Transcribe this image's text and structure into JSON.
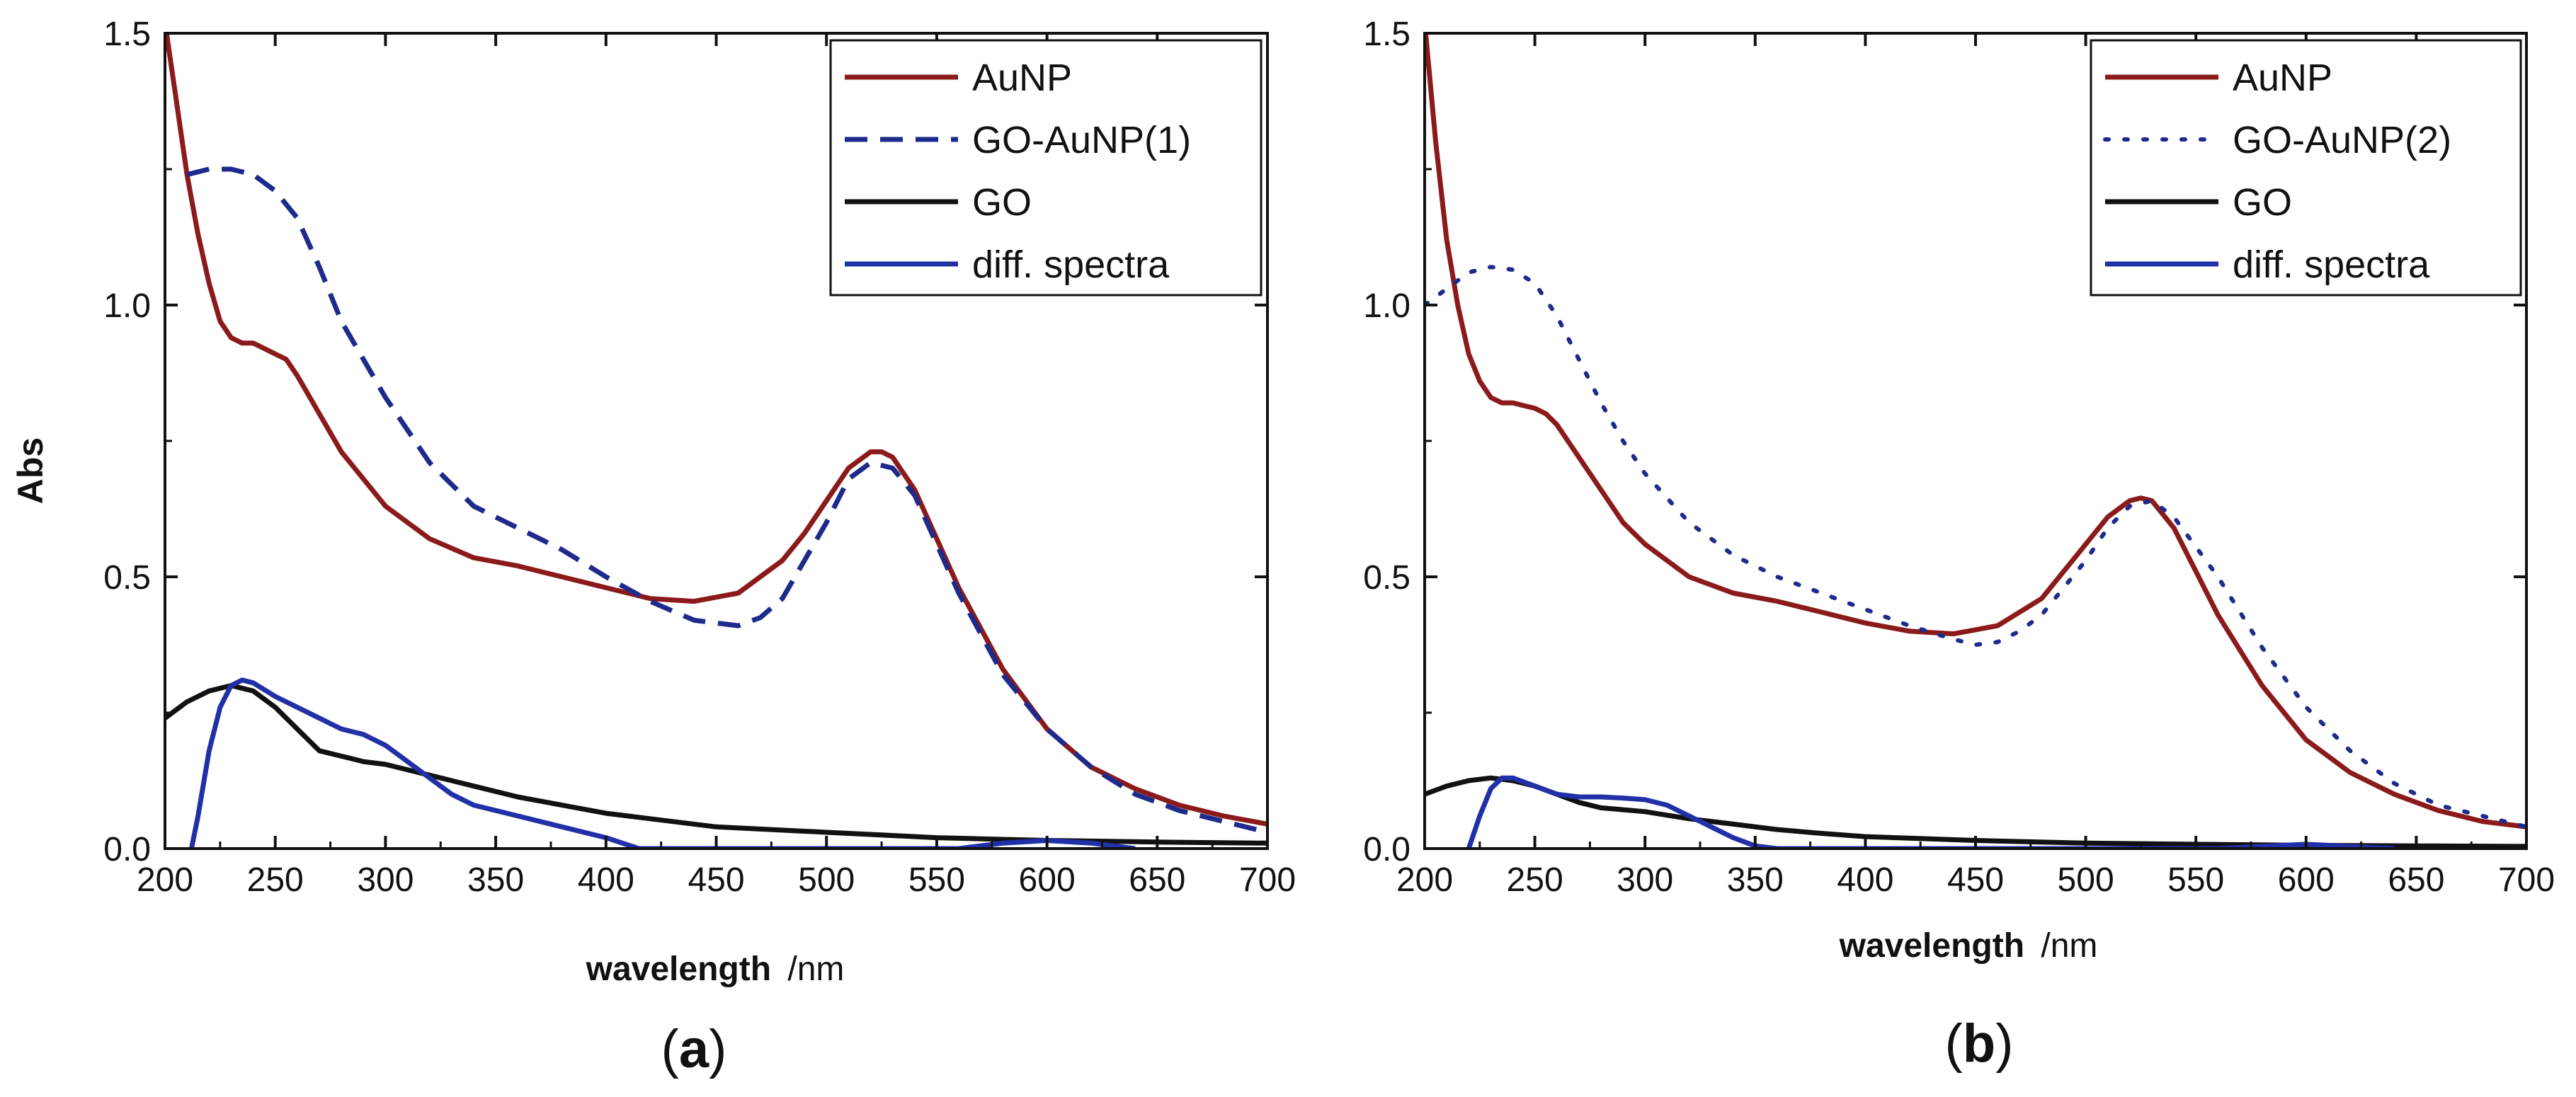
{
  "colors": {
    "AuNP": "#8b1a1a",
    "GO-AuNP": "#1e2a8c",
    "GO": "#111111",
    "diff": "#2230a8"
  },
  "chart_data": [
    {
      "type": "line",
      "panel_label": "a",
      "xlabel": "wavelength",
      "xlabel_unit": "/nm",
      "ylabel": "Abs",
      "xlim": [
        200,
        700
      ],
      "ylim": [
        0,
        1.5
      ],
      "x_ticks": [
        "200",
        "250",
        "300",
        "350",
        "400",
        "450",
        "500",
        "550",
        "600",
        "650",
        "700"
      ],
      "y_ticks": [
        "0.0",
        "0.5",
        "1.0",
        "1.5"
      ],
      "show_ylabel": true,
      "legend_position": "top-right",
      "legend": [
        {
          "name": "AuNP",
          "color": "#8b1a1a",
          "dash": "solid"
        },
        {
          "name": "GO-AuNP(1)",
          "color": "#1e2a8c",
          "dash": "dashed"
        },
        {
          "name": "GO",
          "color": "#111111",
          "dash": "solid"
        },
        {
          "name": "diff. spectra",
          "color": "#2230a8",
          "dash": "solid"
        }
      ],
      "series": [
        {
          "name": "AuNP",
          "color": "#8b1a1a",
          "dash": "solid",
          "x": [
            200,
            205,
            210,
            215,
            220,
            225,
            230,
            235,
            240,
            245,
            250,
            255,
            260,
            270,
            280,
            290,
            300,
            320,
            340,
            360,
            380,
            400,
            420,
            440,
            460,
            480,
            490,
            500,
            510,
            520,
            525,
            530,
            540,
            550,
            560,
            580,
            600,
            620,
            640,
            660,
            680,
            700
          ],
          "y": [
            1.52,
            1.38,
            1.24,
            1.13,
            1.04,
            0.97,
            0.94,
            0.93,
            0.93,
            0.92,
            0.91,
            0.9,
            0.87,
            0.8,
            0.73,
            0.68,
            0.63,
            0.57,
            0.535,
            0.52,
            0.5,
            0.48,
            0.46,
            0.455,
            0.47,
            0.53,
            0.58,
            0.64,
            0.7,
            0.73,
            0.73,
            0.72,
            0.66,
            0.57,
            0.48,
            0.33,
            0.22,
            0.15,
            0.11,
            0.08,
            0.06,
            0.045
          ]
        },
        {
          "name": "GO-AuNP(1)",
          "color": "#1e2a8c",
          "dash": "dashed",
          "x": [
            210,
            220,
            230,
            240,
            250,
            260,
            270,
            280,
            300,
            320,
            340,
            360,
            380,
            400,
            420,
            440,
            460,
            470,
            480,
            490,
            500,
            510,
            520,
            530,
            540,
            560,
            580,
            600,
            620,
            640,
            660,
            680,
            700
          ],
          "y": [
            1.24,
            1.25,
            1.25,
            1.24,
            1.21,
            1.16,
            1.07,
            0.97,
            0.83,
            0.71,
            0.63,
            0.59,
            0.55,
            0.5,
            0.455,
            0.42,
            0.41,
            0.425,
            0.46,
            0.53,
            0.6,
            0.68,
            0.71,
            0.7,
            0.65,
            0.47,
            0.32,
            0.22,
            0.15,
            0.1,
            0.07,
            0.05,
            0.03
          ]
        },
        {
          "name": "GO",
          "color": "#111111",
          "dash": "solid",
          "x": [
            200,
            210,
            220,
            230,
            240,
            250,
            260,
            270,
            280,
            290,
            300,
            320,
            340,
            360,
            380,
            400,
            420,
            450,
            500,
            550,
            600,
            650,
            700
          ],
          "y": [
            0.24,
            0.27,
            0.29,
            0.3,
            0.29,
            0.26,
            0.22,
            0.18,
            0.17,
            0.16,
            0.155,
            0.135,
            0.115,
            0.095,
            0.08,
            0.065,
            0.055,
            0.04,
            0.03,
            0.02,
            0.015,
            0.012,
            0.01
          ]
        },
        {
          "name": "diff. spectra",
          "color": "#2230a8",
          "dash": "solid",
          "x": [
            212,
            215,
            220,
            225,
            230,
            235,
            240,
            250,
            260,
            270,
            280,
            290,
            300,
            310,
            320,
            330,
            340,
            360,
            380,
            400,
            415,
            560,
            580,
            600,
            620,
            640
          ],
          "y": [
            0.0,
            0.06,
            0.18,
            0.26,
            0.3,
            0.31,
            0.305,
            0.28,
            0.26,
            0.24,
            0.22,
            0.21,
            0.19,
            0.16,
            0.13,
            0.1,
            0.08,
            0.06,
            0.04,
            0.02,
            0.0,
            0.0,
            0.01,
            0.015,
            0.01,
            0.0
          ]
        }
      ]
    },
    {
      "type": "line",
      "panel_label": "b",
      "xlabel": "wavelength",
      "xlabel_unit": "/nm",
      "ylabel": "",
      "xlim": [
        200,
        700
      ],
      "ylim": [
        0,
        1.5
      ],
      "x_ticks": [
        "200",
        "250",
        "300",
        "350",
        "400",
        "450",
        "500",
        "550",
        "600",
        "650",
        "700"
      ],
      "y_ticks": [
        "0.0",
        "0.5",
        "1.0",
        "1.5"
      ],
      "show_ylabel": false,
      "legend_position": "top-right",
      "legend": [
        {
          "name": "AuNP",
          "color": "#8b1a1a",
          "dash": "solid"
        },
        {
          "name": "GO-AuNP(2)",
          "color": "#1e2a8c",
          "dash": "dotted"
        },
        {
          "name": "GO",
          "color": "#111111",
          "dash": "solid"
        },
        {
          "name": "diff. spectra",
          "color": "#2230a8",
          "dash": "solid"
        }
      ],
      "series": [
        {
          "name": "AuNP",
          "color": "#8b1a1a",
          "dash": "solid",
          "x": [
            200,
            205,
            210,
            215,
            220,
            225,
            230,
            235,
            240,
            245,
            250,
            255,
            260,
            270,
            280,
            290,
            300,
            320,
            340,
            360,
            380,
            400,
            420,
            440,
            460,
            480,
            490,
            500,
            510,
            520,
            525,
            530,
            540,
            550,
            560,
            580,
            600,
            620,
            640,
            660,
            680,
            700
          ],
          "y": [
            1.52,
            1.3,
            1.12,
            1.0,
            0.91,
            0.86,
            0.83,
            0.82,
            0.82,
            0.815,
            0.81,
            0.8,
            0.78,
            0.72,
            0.66,
            0.6,
            0.56,
            0.5,
            0.47,
            0.455,
            0.435,
            0.415,
            0.4,
            0.395,
            0.41,
            0.46,
            0.51,
            0.56,
            0.61,
            0.64,
            0.645,
            0.64,
            0.59,
            0.51,
            0.43,
            0.3,
            0.2,
            0.14,
            0.1,
            0.07,
            0.05,
            0.04
          ]
        },
        {
          "name": "GO-AuNP(2)",
          "color": "#1e2a8c",
          "dash": "dotted",
          "x": [
            200,
            210,
            220,
            230,
            240,
            250,
            260,
            270,
            280,
            290,
            300,
            320,
            340,
            360,
            380,
            400,
            420,
            440,
            450,
            460,
            470,
            480,
            490,
            500,
            510,
            520,
            530,
            540,
            560,
            580,
            600,
            620,
            640,
            660,
            680,
            700
          ],
          "y": [
            1.0,
            1.03,
            1.06,
            1.07,
            1.065,
            1.04,
            0.98,
            0.9,
            0.82,
            0.75,
            0.69,
            0.6,
            0.54,
            0.5,
            0.47,
            0.44,
            0.41,
            0.385,
            0.375,
            0.38,
            0.4,
            0.43,
            0.48,
            0.53,
            0.59,
            0.63,
            0.64,
            0.61,
            0.5,
            0.37,
            0.26,
            0.18,
            0.12,
            0.08,
            0.06,
            0.04
          ]
        },
        {
          "name": "GO",
          "color": "#111111",
          "dash": "solid",
          "x": [
            200,
            210,
            220,
            230,
            240,
            250,
            260,
            270,
            280,
            300,
            320,
            340,
            360,
            380,
            400,
            450,
            500,
            550,
            600,
            650,
            700
          ],
          "y": [
            0.1,
            0.115,
            0.125,
            0.13,
            0.125,
            0.115,
            0.1,
            0.085,
            0.075,
            0.068,
            0.055,
            0.045,
            0.035,
            0.028,
            0.022,
            0.015,
            0.01,
            0.008,
            0.006,
            0.005,
            0.004
          ]
        },
        {
          "name": "diff. spectra",
          "color": "#2230a8",
          "dash": "solid",
          "x": [
            220,
            225,
            230,
            235,
            240,
            250,
            260,
            270,
            280,
            290,
            300,
            310,
            320,
            330,
            340,
            350,
            360,
            560,
            600,
            640
          ],
          "y": [
            0.0,
            0.06,
            0.11,
            0.13,
            0.13,
            0.115,
            0.1,
            0.095,
            0.095,
            0.093,
            0.09,
            0.08,
            0.06,
            0.04,
            0.02,
            0.005,
            0.0,
            0.0,
            0.008,
            0.0
          ]
        }
      ]
    }
  ]
}
